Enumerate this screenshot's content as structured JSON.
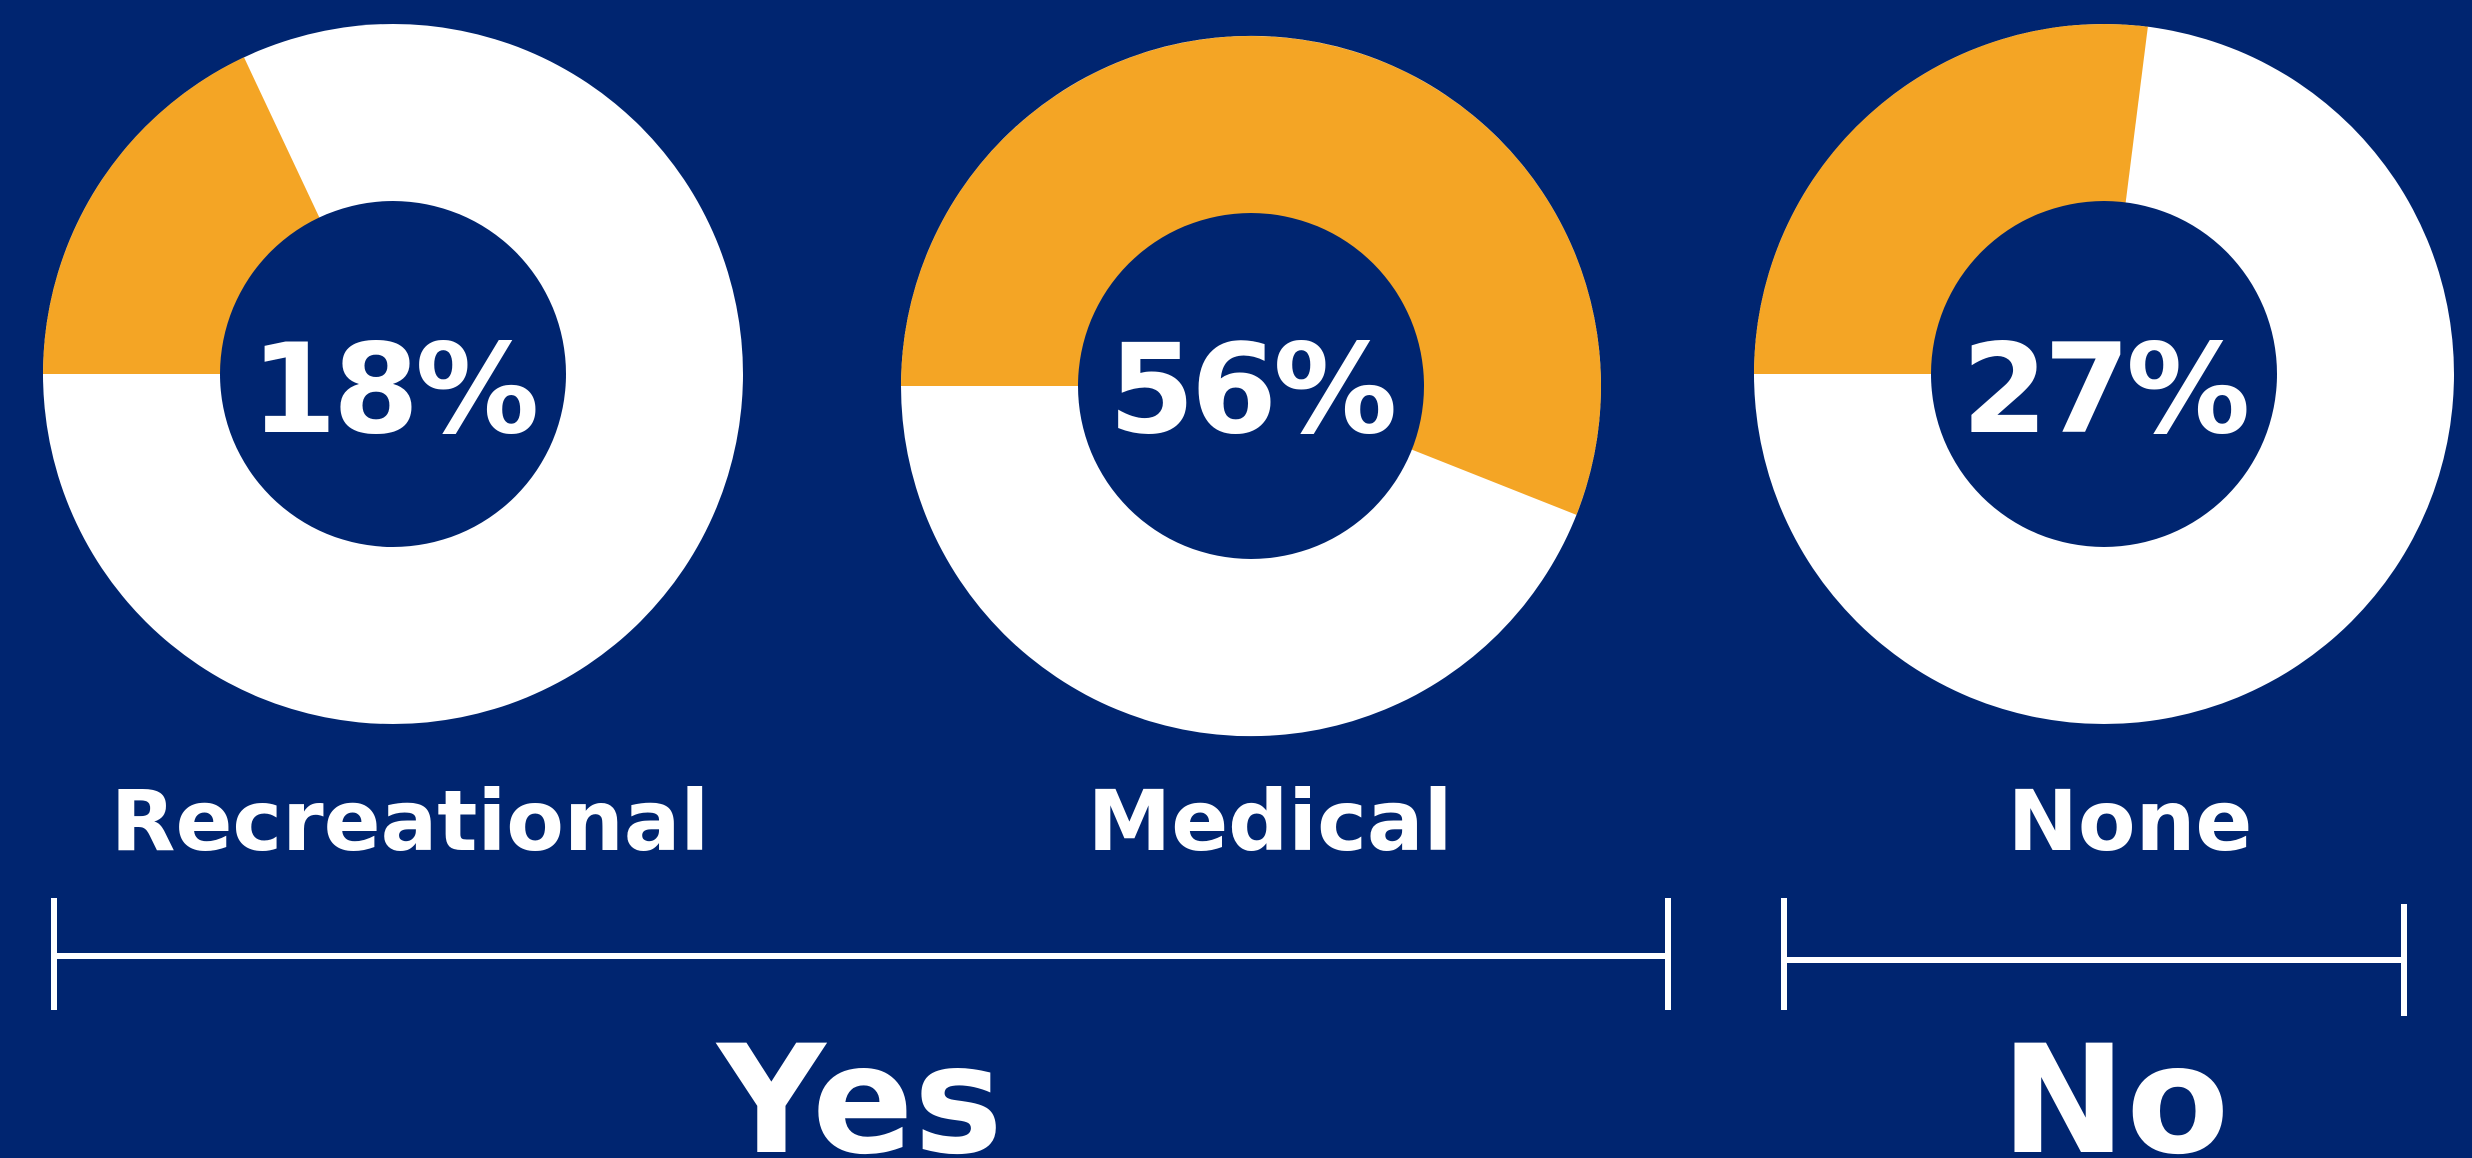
{
  "chart_data": [
    {
      "type": "pie",
      "category": "Recreational",
      "group": "Yes",
      "value_label": "18%",
      "value": 18,
      "start_angle_deg": 270,
      "colors": {
        "highlight": "#F4A525",
        "remainder": "#FFFFFF"
      }
    },
    {
      "type": "pie",
      "category": "Medical",
      "group": "Yes",
      "value_label": "56%",
      "value": 56,
      "start_angle_deg": 270,
      "colors": {
        "highlight": "#F4A525",
        "remainder": "#FFFFFF"
      }
    },
    {
      "type": "pie",
      "category": "None",
      "group": "No",
      "value_label": "27%",
      "value": 27,
      "start_angle_deg": 270,
      "colors": {
        "highlight": "#F4A525",
        "remainder": "#FFFFFF"
      }
    }
  ],
  "groups": [
    {
      "label": "Yes"
    },
    {
      "label": "No"
    }
  ],
  "colors": {
    "background": "#002570",
    "highlight": "#F4A525",
    "remainder": "#FFFFFF",
    "text": "#FFFFFF"
  }
}
